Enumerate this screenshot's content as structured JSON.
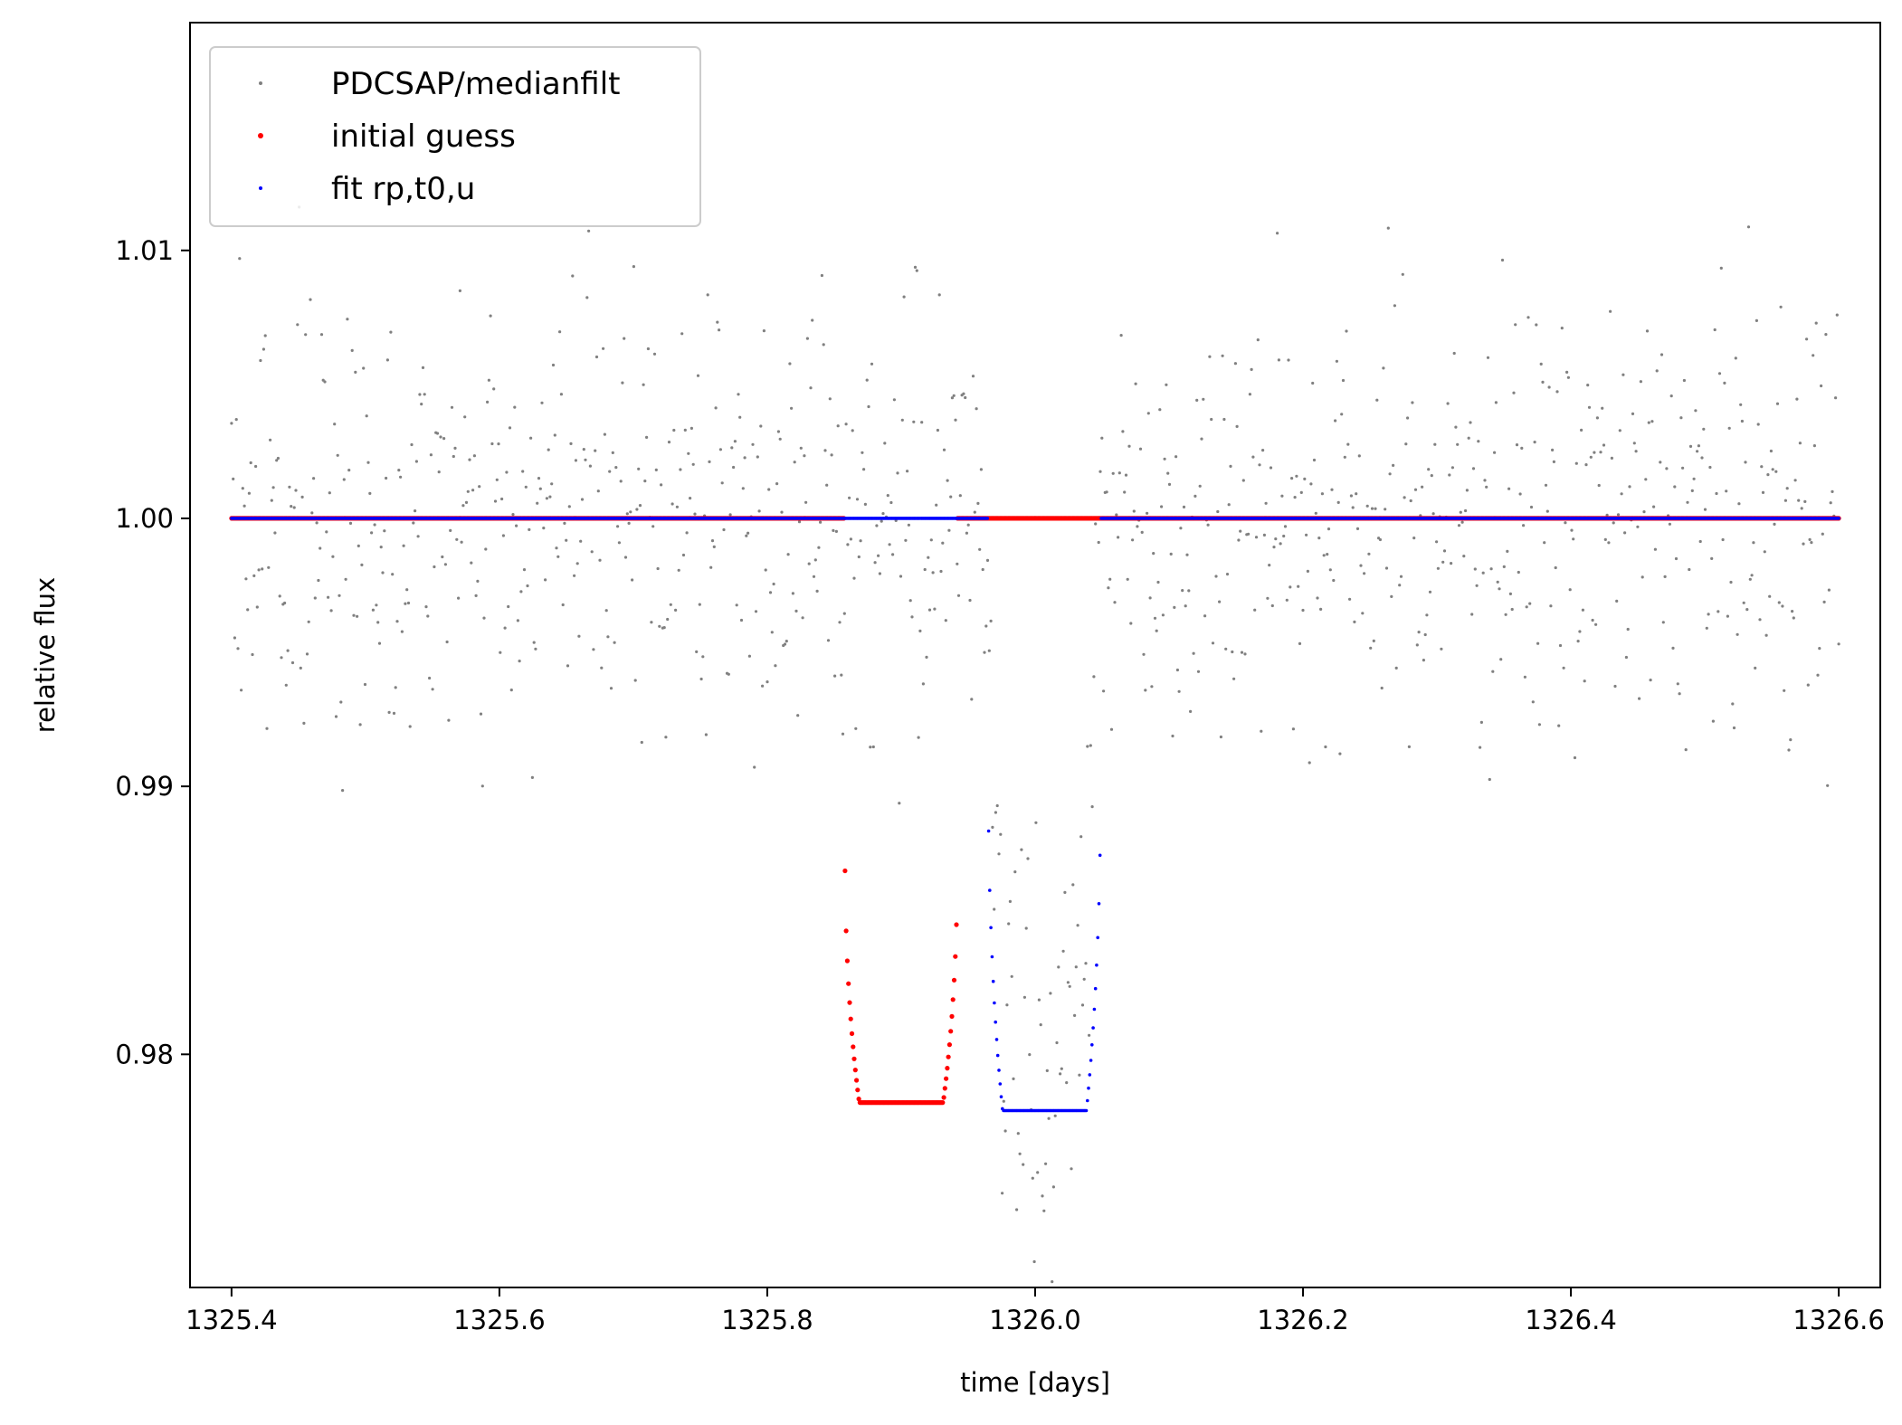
{
  "chart_data": {
    "type": "scatter",
    "xlabel": "time [days]",
    "ylabel": "relative flux",
    "xlim": [
      1325.369,
      1326.631
    ],
    "ylim": [
      0.9713,
      1.0185
    ],
    "xticks": [
      1325.4,
      1325.6,
      1325.8,
      1326.0,
      1326.2,
      1326.4,
      1326.6
    ],
    "xtick_labels": [
      "1325.4",
      "1325.6",
      "1325.8",
      "1326.0",
      "1326.2",
      "1326.4",
      "1326.6"
    ],
    "yticks": [
      0.98,
      0.99,
      1.0,
      1.01
    ],
    "ytick_labels": [
      "0.98",
      "0.99",
      "1.00",
      "1.01"
    ],
    "grid": false,
    "legend_position": "top-left",
    "series": [
      {
        "name": "PDCSAP/medianfilt",
        "color": "#808080",
        "kind": "noisy-observations",
        "x_range": [
          1325.4,
          1326.6
        ],
        "n_points": 1000,
        "baseline": 1.0,
        "scatter_std": 0.004,
        "transit": {
          "t0": 1326.005,
          "depth": 0.022,
          "half_duration": 0.04
        }
      },
      {
        "name": "initial guess",
        "color": "#ff0000",
        "kind": "transit-model",
        "x_range": [
          1325.4,
          1326.6
        ],
        "baseline": 1.0,
        "t0": 1325.9,
        "depth": 0.0218,
        "half_duration": 0.042,
        "limb_darkening_u": 0.6
      },
      {
        "name": "fit rp,t0,u",
        "color": "#0000ff",
        "kind": "transit-model",
        "x_range": [
          1325.4,
          1326.6
        ],
        "baseline": 1.0,
        "t0": 1326.007,
        "depth": 0.0221,
        "half_duration": 0.042,
        "limb_darkening_u": 0.75
      }
    ]
  }
}
